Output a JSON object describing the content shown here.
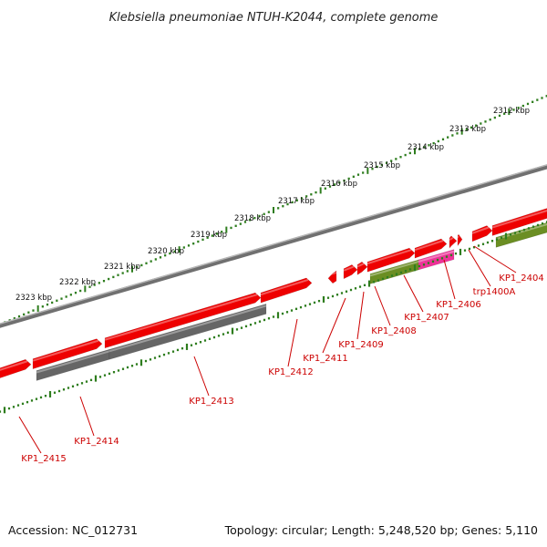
{
  "title": "Klebsiella pneumoniae NTUH-K2044, complete genome",
  "footer": {
    "accession": "Accession: NC_012731",
    "summary": "Topology: circular; Length: 5,248,520 bp; Genes: 5,110"
  },
  "ruler": {
    "labels": [
      "2312 kbp",
      "2313 kbp",
      "2314 kbp",
      "2315 kbp",
      "2316 kbp",
      "2317 kbp",
      "2318 kbp",
      "2319 kbp",
      "2320 kbp",
      "2321 kbp",
      "2322 kbp",
      "2323 kbp"
    ]
  },
  "colors": {
    "backbone": "#8c8c8c",
    "gene_red": "#ee0000",
    "gene_gray": "#666666",
    "gene_olive": "#6b8e23",
    "gene_pink": "#ee3399",
    "tick_green": "#2e7d1e",
    "label_red": "#cc0000"
  },
  "gene_labels": [
    "KP1_2404",
    "trp1400A",
    "KP1_2406",
    "KP1_2407",
    "KP1_2408",
    "KP1_2409",
    "KP1_2411",
    "KP1_2412",
    "KP1_2413",
    "KP1_2414",
    "KP1_2415"
  ]
}
